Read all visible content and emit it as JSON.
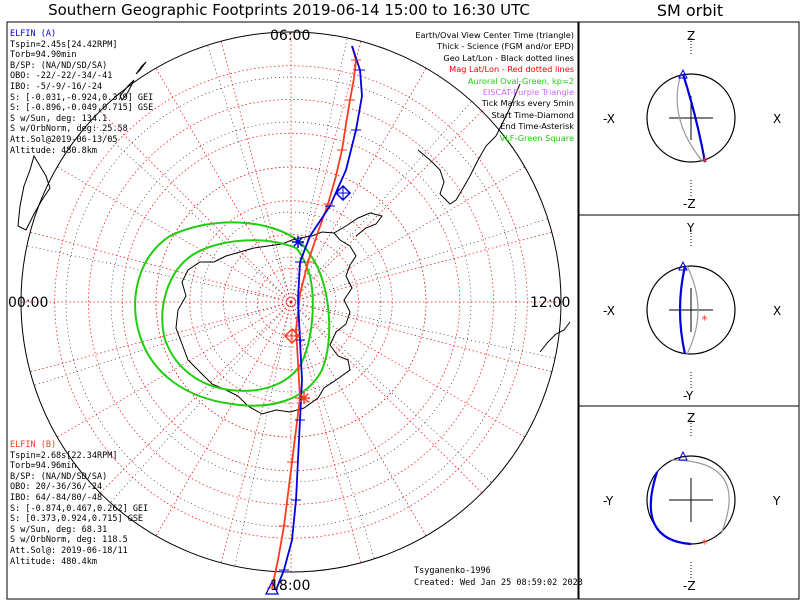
{
  "header": {
    "title": "Southern Geographic Footprints 2019-06-14 15:00 to 16:30 UTC",
    "orbit_title": "SM orbit"
  },
  "colors": {
    "elfin_a": "#0000dd",
    "elfin_b": "#ff3b1f",
    "aurora": "#22cc11",
    "grid_mag": "#ff0000",
    "grid_geo": "#000000"
  },
  "polar_plot": {
    "mlt_labels": {
      "top": "06:00",
      "left": "00:00",
      "right": "12:00",
      "bottom": "18:00"
    },
    "credit": "Tsyganenko-1996",
    "created": "Created: Wed Jan 25 08:59:02 2023"
  },
  "elfin_a": {
    "lines": [
      "ELFIN (A)",
      "Tspin=2.45s[24.42RPM]",
      "Torb=94.90min",
      "B/SP: (NA/ND/SD/SA)",
      "OBO: -22/-22/-34/-41",
      "IBO: -5/-9/-16/-24",
      "S: [-0.031,-0.924,0.379] GEI",
      "S: [-0.896,-0.049,0.715] GSE",
      "S w/Sun, deg: 134.1",
      "S w/OrbNorm, deg: 25.58",
      "Att.Sol@2019-06-13/05",
      "Altitude: 480.8km"
    ]
  },
  "elfin_b": {
    "lines": [
      "ELFIN (B)",
      "Tspin=2.68s[22.34RPM]",
      "Torb=94.96min",
      "B/SP: (NA/ND/SD/SA)",
      "OBO: 20/-36/36/-24",
      "IBO: 64/-84/80/-48",
      "S: [-0.874,0.467,0.262] GEI",
      "S: [0.373,0.924,0.715] GSE",
      "S w/Sun, deg: 68.31",
      "S w/OrbNorm, deg: 118.5",
      "Att.Sol@: 2019-06-18/11",
      "Altitude: 480.4km"
    ]
  },
  "legend": [
    {
      "text": "Earth/Oval View Center Time (triangle)",
      "color": "#000000"
    },
    {
      "text": "Thick - Science (FGM and/or EPD)",
      "color": "#000000"
    },
    {
      "text": "Geo Lat/Lon - Black dotted lines",
      "color": "#000000"
    },
    {
      "text": "Mag Lat/Lon - Red dotted lines",
      "color": "#ff0000"
    },
    {
      "text": "Auroral Oval-Green, kp=2",
      "color": "#22cc11"
    },
    {
      "text": "EISCAT-Purple Triangle",
      "color": "#cc66ff"
    },
    {
      "text": "Tick Marks every 5min",
      "color": "#000000"
    },
    {
      "text": "Start Time-Diamond",
      "color": "#000000"
    },
    {
      "text": "End Time-Asterisk",
      "color": "#000000"
    },
    {
      "text": "VLF-Green Square",
      "color": "#22cc11"
    }
  ],
  "orbit_panels": [
    {
      "top": "Z",
      "bottom": "-Z",
      "left": "-X",
      "right": "X"
    },
    {
      "top": "Y",
      "bottom": "-Y",
      "left": "-X",
      "right": "X"
    },
    {
      "top": "Z",
      "bottom": "-Z",
      "left": "-Y",
      "right": "Y"
    }
  ]
}
